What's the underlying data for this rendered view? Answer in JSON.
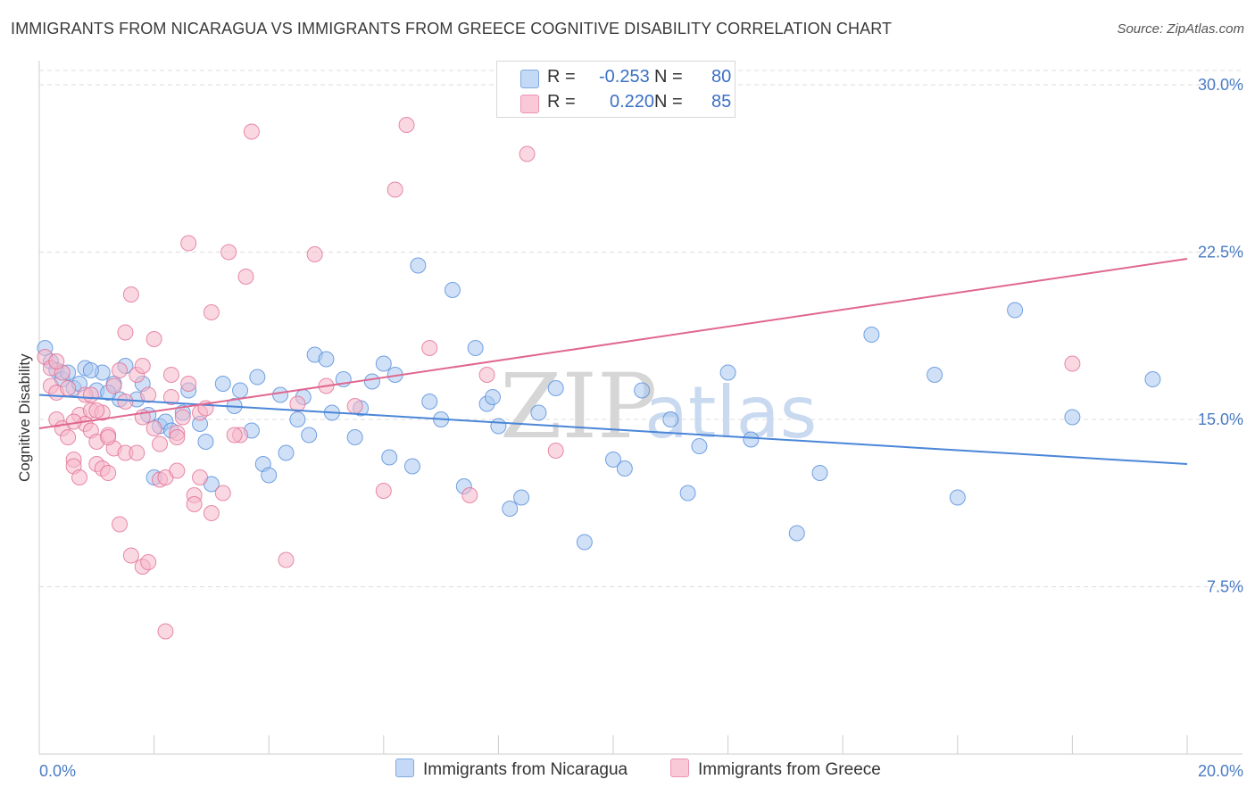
{
  "header": {
    "title": "IMMIGRANTS FROM NICARAGUA VS IMMIGRANTS FROM GREECE COGNITIVE DISABILITY CORRELATION CHART",
    "source": "Source: ZipAtlas.com"
  },
  "watermark": {
    "zip": "ZIP",
    "atlas": "atlas"
  },
  "legend": {
    "rows": [
      {
        "r_label": "R =",
        "r_value": "-0.253",
        "n_label": "N =",
        "n_value": "80",
        "color": "#aac8f0"
      },
      {
        "r_label": "R =",
        "r_value": "0.220",
        "n_label": "N =",
        "n_value": "85",
        "color": "#f6b8cb"
      }
    ]
  },
  "bottom_legend": {
    "items": [
      {
        "label": "Immigrants from Nicaragua",
        "color": "#aac8f0"
      },
      {
        "label": "Immigrants from Greece",
        "color": "#f6b8cb"
      }
    ]
  },
  "chart_data": {
    "type": "scatter",
    "title": "IMMIGRANTS FROM NICARAGUA VS IMMIGRANTS FROM GREECE COGNITIVE DISABILITY CORRELATION CHART",
    "xlabel": "",
    "ylabel": "Cognitive Disability",
    "xlim": [
      0,
      20
    ],
    "ylim": [
      0,
      31
    ],
    "x_tick_labels": [
      "0.0%",
      "20.0%"
    ],
    "y_ticks": [
      7.5,
      15.0,
      22.5,
      30.0
    ],
    "y_tick_labels": [
      "7.5%",
      "15.0%",
      "22.5%",
      "30.0%"
    ],
    "grid": true,
    "series": [
      {
        "name": "Immigrants from Nicaragua",
        "color": "#4a86d8",
        "fill": "#aac8f0",
        "trend": {
          "x": [
            0,
            20
          ],
          "y": [
            16.1,
            13.0
          ]
        },
        "points": [
          [
            0.1,
            18.2
          ],
          [
            0.2,
            17.6
          ],
          [
            0.3,
            17.2
          ],
          [
            0.4,
            16.8
          ],
          [
            0.5,
            17.1
          ],
          [
            0.6,
            16.4
          ],
          [
            0.7,
            16.6
          ],
          [
            0.8,
            17.3
          ],
          [
            1.0,
            16.3
          ],
          [
            1.1,
            17.1
          ],
          [
            1.3,
            16.6
          ],
          [
            1.4,
            15.9
          ],
          [
            1.5,
            17.4
          ],
          [
            1.7,
            15.9
          ],
          [
            1.8,
            16.6
          ],
          [
            1.9,
            15.2
          ],
          [
            2.1,
            14.7
          ],
          [
            2.2,
            14.9
          ],
          [
            2.3,
            14.5
          ],
          [
            2.5,
            15.3
          ],
          [
            2.6,
            16.3
          ],
          [
            2.8,
            14.8
          ],
          [
            3.2,
            16.6
          ],
          [
            3.4,
            15.6
          ],
          [
            3.5,
            16.3
          ],
          [
            3.8,
            16.9
          ],
          [
            3.9,
            13.0
          ],
          [
            4.0,
            12.5
          ],
          [
            4.3,
            13.5
          ],
          [
            4.5,
            15.0
          ],
          [
            4.6,
            16.0
          ],
          [
            4.7,
            14.3
          ],
          [
            4.8,
            17.9
          ],
          [
            5.0,
            17.7
          ],
          [
            5.1,
            15.3
          ],
          [
            5.3,
            16.8
          ],
          [
            5.5,
            14.2
          ],
          [
            5.6,
            15.5
          ],
          [
            5.8,
            16.7
          ],
          [
            6.0,
            17.5
          ],
          [
            6.1,
            13.3
          ],
          [
            6.2,
            17.0
          ],
          [
            6.5,
            12.9
          ],
          [
            6.6,
            21.9
          ],
          [
            7.0,
            15.0
          ],
          [
            7.2,
            20.8
          ],
          [
            7.4,
            12.0
          ],
          [
            7.6,
            18.2
          ],
          [
            7.8,
            15.7
          ],
          [
            7.9,
            16.0
          ],
          [
            8.2,
            11.0
          ],
          [
            8.4,
            11.5
          ],
          [
            8.7,
            15.3
          ],
          [
            9.0,
            16.4
          ],
          [
            9.5,
            9.5
          ],
          [
            10.0,
            13.2
          ],
          [
            10.5,
            16.3
          ],
          [
            11.0,
            15.0
          ],
          [
            11.3,
            11.7
          ],
          [
            11.5,
            13.8
          ],
          [
            12.0,
            17.1
          ],
          [
            12.4,
            14.1
          ],
          [
            13.2,
            9.9
          ],
          [
            13.6,
            12.6
          ],
          [
            14.5,
            18.8
          ],
          [
            15.6,
            17.0
          ],
          [
            16.0,
            11.5
          ],
          [
            17.0,
            19.9
          ],
          [
            18.0,
            15.1
          ],
          [
            19.4,
            16.8
          ],
          [
            2.0,
            12.4
          ],
          [
            3.0,
            12.1
          ],
          [
            4.2,
            16.1
          ],
          [
            2.9,
            14.0
          ],
          [
            1.2,
            16.2
          ],
          [
            0.9,
            17.2
          ],
          [
            3.7,
            14.5
          ],
          [
            6.8,
            15.8
          ],
          [
            8.0,
            14.7
          ],
          [
            10.2,
            12.8
          ]
        ]
      },
      {
        "name": "Immigrants from Greece",
        "color": "#e0678f",
        "fill": "#f6b8cb",
        "trend": {
          "x": [
            0,
            20
          ],
          "y": [
            14.6,
            22.2
          ]
        },
        "points": [
          [
            0.1,
            17.8
          ],
          [
            0.2,
            17.3
          ],
          [
            0.2,
            16.5
          ],
          [
            0.3,
            16.2
          ],
          [
            0.3,
            15.0
          ],
          [
            0.4,
            14.6
          ],
          [
            0.5,
            16.4
          ],
          [
            0.5,
            14.2
          ],
          [
            0.6,
            13.2
          ],
          [
            0.6,
            12.9
          ],
          [
            0.7,
            15.2
          ],
          [
            0.7,
            12.4
          ],
          [
            0.8,
            16.1
          ],
          [
            0.8,
            14.8
          ],
          [
            0.9,
            14.5
          ],
          [
            0.9,
            15.4
          ],
          [
            1.0,
            14.0
          ],
          [
            1.0,
            13.0
          ],
          [
            1.1,
            15.3
          ],
          [
            1.1,
            12.8
          ],
          [
            1.2,
            14.3
          ],
          [
            1.2,
            12.6
          ],
          [
            1.3,
            16.5
          ],
          [
            1.3,
            13.7
          ],
          [
            1.4,
            17.2
          ],
          [
            1.4,
            10.3
          ],
          [
            1.5,
            18.9
          ],
          [
            1.5,
            13.5
          ],
          [
            1.6,
            8.9
          ],
          [
            1.6,
            20.6
          ],
          [
            1.7,
            17.0
          ],
          [
            1.7,
            13.5
          ],
          [
            1.8,
            15.1
          ],
          [
            1.8,
            8.4
          ],
          [
            1.9,
            16.1
          ],
          [
            1.9,
            8.6
          ],
          [
            2.0,
            18.6
          ],
          [
            2.0,
            14.6
          ],
          [
            2.1,
            13.9
          ],
          [
            2.1,
            12.3
          ],
          [
            2.2,
            5.5
          ],
          [
            2.2,
            12.4
          ],
          [
            2.3,
            16.0
          ],
          [
            2.3,
            17.0
          ],
          [
            2.4,
            14.4
          ],
          [
            2.4,
            12.7
          ],
          [
            2.5,
            15.1
          ],
          [
            2.6,
            22.9
          ],
          [
            2.6,
            16.6
          ],
          [
            2.7,
            11.6
          ],
          [
            2.8,
            15.3
          ],
          [
            2.8,
            12.4
          ],
          [
            3.0,
            19.8
          ],
          [
            3.0,
            10.8
          ],
          [
            3.2,
            11.7
          ],
          [
            3.3,
            22.5
          ],
          [
            3.5,
            14.3
          ],
          [
            3.6,
            21.4
          ],
          [
            3.7,
            27.9
          ],
          [
            4.3,
            8.7
          ],
          [
            4.5,
            15.7
          ],
          [
            4.8,
            22.4
          ],
          [
            5.0,
            16.5
          ],
          [
            5.5,
            15.6
          ],
          [
            6.0,
            11.8
          ],
          [
            6.2,
            25.3
          ],
          [
            6.4,
            28.2
          ],
          [
            6.8,
            18.2
          ],
          [
            7.5,
            11.6
          ],
          [
            7.8,
            17.0
          ],
          [
            8.5,
            26.9
          ],
          [
            9.0,
            13.6
          ],
          [
            18.0,
            17.5
          ],
          [
            0.4,
            17.1
          ],
          [
            0.6,
            14.9
          ],
          [
            1.0,
            15.4
          ],
          [
            1.2,
            14.2
          ],
          [
            1.5,
            15.8
          ],
          [
            1.8,
            17.4
          ],
          [
            2.4,
            14.2
          ],
          [
            2.9,
            15.5
          ],
          [
            3.4,
            14.3
          ],
          [
            0.3,
            17.6
          ],
          [
            0.9,
            16.1
          ],
          [
            2.7,
            11.2
          ]
        ]
      }
    ]
  }
}
